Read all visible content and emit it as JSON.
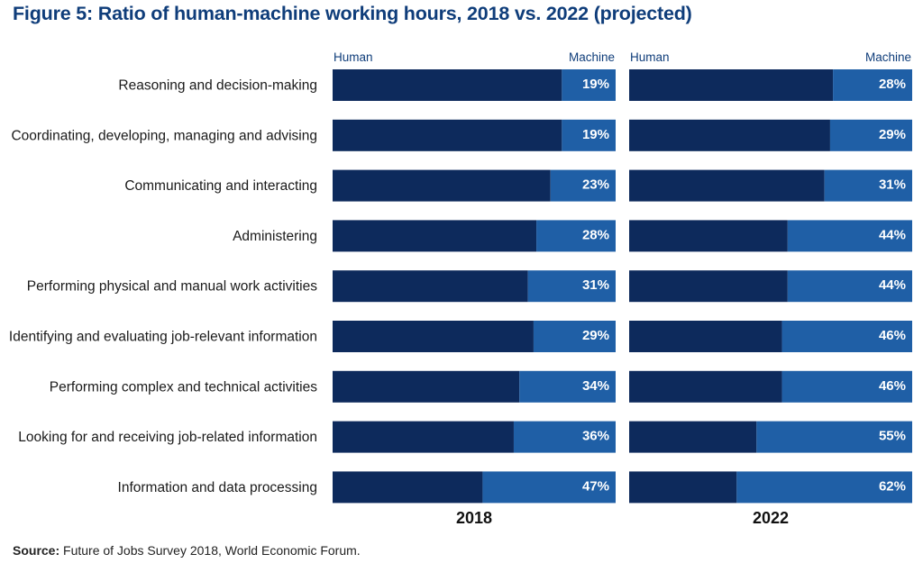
{
  "title": "Figure 5: Ratio of human-machine working hours, 2018 vs. 2022 (projected)",
  "source_label": "Source:",
  "source_text": "Future of Jobs Survey 2018, World Economic Forum.",
  "colors": {
    "human": "#0d2a5c",
    "machine": "#1f5fa6",
    "title": "#0f3d7a"
  },
  "chart_data": {
    "type": "bar",
    "orientation": "horizontal",
    "stacked": true,
    "legend": [
      "Human",
      "Machine"
    ],
    "categories": [
      "Reasoning and decision-making",
      "Coordinating, developing, managing and advising",
      "Communicating and interacting",
      "Administering",
      "Performing physical and manual work activities",
      "Identifying and evaluating job-relevant information",
      "Performing complex and technical activities",
      "Looking for and receiving job-related information",
      "Information and data processing"
    ],
    "panels": [
      {
        "label": "2018",
        "machine": [
          19,
          19,
          23,
          28,
          31,
          29,
          34,
          36,
          47
        ]
      },
      {
        "label": "2022",
        "machine": [
          28,
          29,
          31,
          44,
          44,
          46,
          46,
          55,
          62
        ]
      }
    ],
    "unit": "%"
  }
}
